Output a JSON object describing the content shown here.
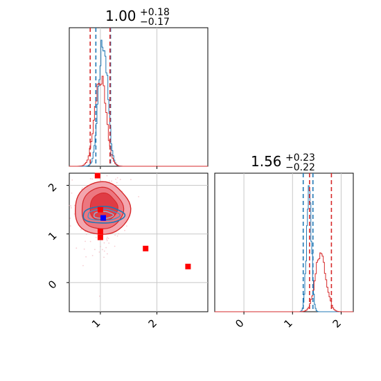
{
  "chart_data": {
    "type": "corner",
    "parameters": [
      {
        "title_main": "1.00",
        "title_sup": "+0.18",
        "title_sub": "−0.17",
        "median": 1.0,
        "quantiles": {
          "blue": [
            0.92,
            1.18
          ],
          "red": [
            0.82,
            1.17
          ]
        },
        "xlim": [
          0.45,
          2.9
        ],
        "ticks": [
          1,
          2
        ]
      },
      {
        "title_main": "1.56",
        "title_sup": "+0.23",
        "title_sub": "−0.22",
        "median": 1.56,
        "quantiles": {
          "blue": [
            1.22,
            1.42
          ],
          "red": [
            1.35,
            1.8
          ]
        },
        "xlim": [
          -0.6,
          2.25
        ],
        "ticks": [
          0,
          1,
          2
        ]
      }
    ],
    "series": [
      {
        "color": "#1f77b4",
        "param1_mean": 1.05,
        "param1_sd": 0.08,
        "param2_mean": 1.34,
        "param2_sd": 0.05
      },
      {
        "color": "#d62728",
        "param1_mean": 1.0,
        "param1_sd": 0.1,
        "param2_mean": 1.58,
        "param2_sd": 0.11
      }
    ],
    "joint_panel": {
      "xlim": [
        0.45,
        2.9
      ],
      "ylim": [
        -0.6,
        2.25
      ],
      "xticks": [
        1,
        2
      ],
      "yticks": [
        0,
        1,
        2
      ],
      "blue_marker": [
        1.05,
        1.33
      ],
      "red_markers": [
        [
          0.95,
          2.2
        ],
        [
          1.0,
          1.5
        ],
        [
          1.0,
          1.05
        ],
        [
          1.0,
          0.93
        ],
        [
          1.8,
          0.7
        ],
        [
          2.55,
          0.33
        ]
      ],
      "grid": true
    },
    "tick_labels": {
      "zero": "0",
      "one": "1",
      "two": "2"
    }
  }
}
